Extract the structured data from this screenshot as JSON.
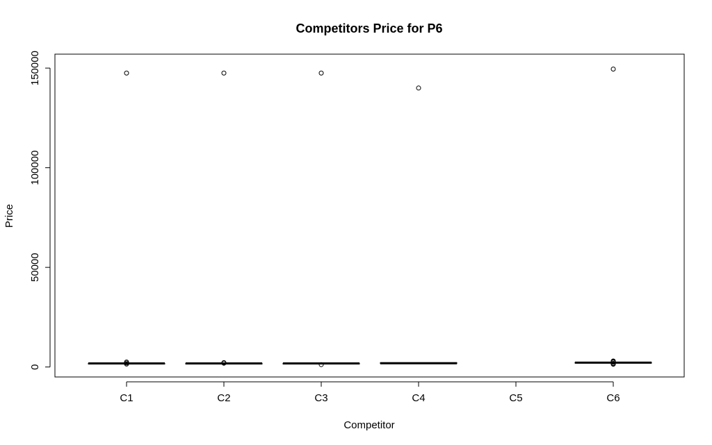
{
  "chart_data": {
    "type": "boxplot",
    "title": "Competitors Price for P6",
    "xlabel": "Competitor",
    "ylabel": "Price",
    "ylim": [
      -5000,
      157000
    ],
    "yticks": [
      0,
      50000,
      100000,
      150000
    ],
    "ytick_labels": [
      "0",
      "50000",
      "100000",
      "150000"
    ],
    "grid": false,
    "categories": [
      "C1",
      "C2",
      "C3",
      "C4",
      "C5",
      "C6"
    ],
    "boxes": [
      {
        "name": "C1",
        "q1": 1750,
        "median": 1800,
        "q3": 1850,
        "outliers": [
          147500,
          2500,
          2000,
          1500
        ]
      },
      {
        "name": "C2",
        "q1": 1750,
        "median": 1800,
        "q3": 1850,
        "outliers": [
          147500,
          2200,
          1900
        ]
      },
      {
        "name": "C3",
        "q1": 1750,
        "median": 1800,
        "q3": 1850,
        "outliers": [
          147500,
          1200
        ]
      },
      {
        "name": "C4",
        "q1": 1700,
        "median": 1900,
        "q3": 2200,
        "outliers": [
          140000
        ]
      },
      {
        "name": "C5",
        "q1": null,
        "median": null,
        "q3": null,
        "outliers": []
      },
      {
        "name": "C6",
        "q1": 2100,
        "median": 2200,
        "q3": 2300,
        "outliers": [
          149500,
          3000,
          2800,
          2600,
          2400,
          1800,
          1600,
          1400
        ]
      }
    ]
  }
}
